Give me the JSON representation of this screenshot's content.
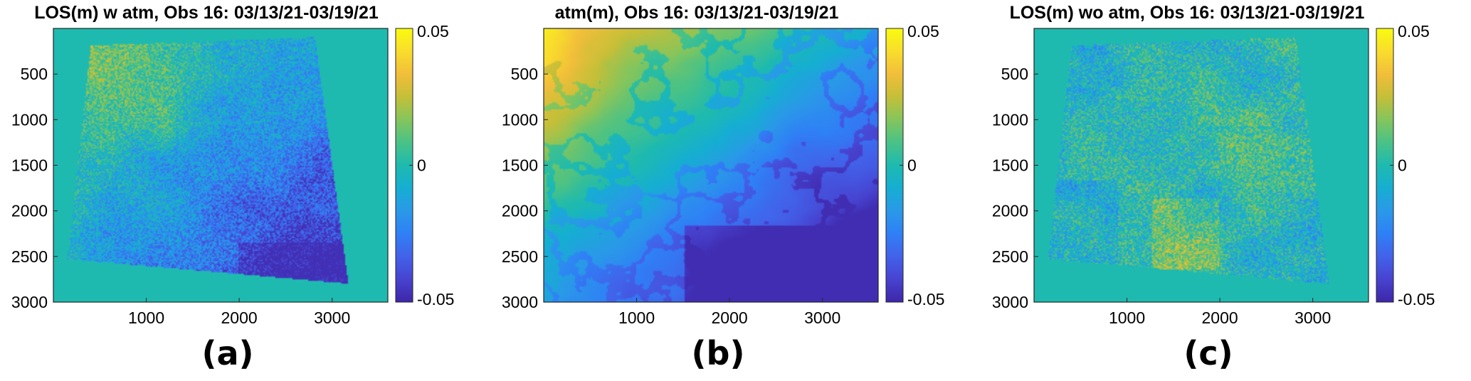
{
  "colormap": [
    "#3e26a8",
    "#4743d0",
    "#4262ea",
    "#2f80f6",
    "#2a99e8",
    "#16aed2",
    "#1ebaaf",
    "#49c287",
    "#85c55c",
    "#c5bf38",
    "#f2be3a",
    "#f9dd2c",
    "#f9fb0e"
  ],
  "background_color": "#1ebaaf",
  "chart_data": [
    {
      "type": "heatmap",
      "title": "LOS(m) w atm, Obs 16: 03/13/21-03/19/21",
      "panel_label": "(a)",
      "x_ticks": [
        "1000",
        "2000",
        "3000"
      ],
      "x_tick_values": [
        1000,
        2000,
        3000
      ],
      "y_ticks": [
        "500",
        "1000",
        "1500",
        "2000",
        "2500",
        "3000"
      ],
      "y_tick_values": [
        500,
        1000,
        1500,
        2000,
        2500,
        3000
      ],
      "xlim": [
        0,
        3600
      ],
      "ylim": [
        3000,
        0
      ],
      "y_reversed": true,
      "colorbar": {
        "ticks": [
          "0.05",
          "0",
          "-0.05"
        ],
        "tick_values": [
          0.05,
          0,
          -0.05
        ],
        "range": [
          -0.05,
          0.05
        ]
      },
      "footprint": "tilted",
      "variant": "noisy_with_atmosphere"
    },
    {
      "type": "heatmap",
      "title": "atm(m), Obs 16: 03/13/21-03/19/21",
      "panel_label": "(b)",
      "x_ticks": [
        "1000",
        "2000",
        "3000"
      ],
      "x_tick_values": [
        1000,
        2000,
        3000
      ],
      "y_ticks": [
        "500",
        "1000",
        "1500",
        "2000",
        "2500",
        "3000"
      ],
      "y_tick_values": [
        500,
        1000,
        1500,
        2000,
        2500,
        3000
      ],
      "xlim": [
        0,
        3600
      ],
      "ylim": [
        3000,
        0
      ],
      "y_reversed": true,
      "colorbar": {
        "ticks": [
          "0.05",
          "0",
          "-0.05"
        ],
        "tick_values": [
          0.05,
          0,
          -0.05
        ],
        "range": [
          -0.05,
          0.05
        ]
      },
      "footprint": "full",
      "variant": "smooth_topographic"
    },
    {
      "type": "heatmap",
      "title": "LOS(m) wo atm, Obs 16: 03/13/21-03/19/21",
      "panel_label": "(c)",
      "x_ticks": [
        "1000",
        "2000",
        "3000"
      ],
      "x_tick_values": [
        1000,
        2000,
        3000
      ],
      "y_ticks": [
        "500",
        "1000",
        "1500",
        "2000",
        "2500",
        "3000"
      ],
      "y_tick_values": [
        500,
        1000,
        1500,
        2000,
        2500,
        3000
      ],
      "xlim": [
        0,
        3600
      ],
      "ylim": [
        3000,
        0
      ],
      "y_reversed": true,
      "colorbar": {
        "ticks": [
          "0.05",
          "0",
          "-0.05"
        ],
        "tick_values": [
          0.05,
          0,
          -0.05
        ],
        "range": [
          -0.05,
          0.05
        ]
      },
      "footprint": "tilted",
      "variant": "noisy_corrected"
    }
  ]
}
